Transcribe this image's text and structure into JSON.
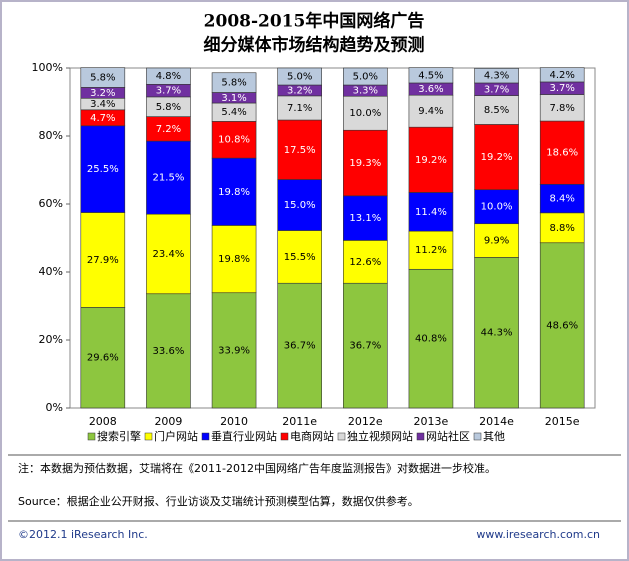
{
  "chart_data": {
    "type": "stacked-bar",
    "title": "2008-2015年中国网络广告",
    "subtitle": "细分媒体市场结构趋势及预测",
    "categories": [
      "2008",
      "2009",
      "2010",
      "2011e",
      "2012e",
      "2013e",
      "2014e",
      "2015e"
    ],
    "ylim": [
      0,
      100
    ],
    "yticks": [
      {
        "value": 0,
        "label": "0%"
      },
      {
        "value": 20,
        "label": "20%"
      },
      {
        "value": 40,
        "label": "40%"
      },
      {
        "value": 60,
        "label": "60%"
      },
      {
        "value": 80,
        "label": "80%"
      },
      {
        "value": 100,
        "label": "100%"
      }
    ],
    "series": [
      {
        "name": "搜索引擎",
        "color": "#8dc63f",
        "values": [
          29.6,
          33.6,
          33.9,
          36.7,
          36.7,
          40.8,
          44.3,
          48.6
        ],
        "value_labels": [
          "29.6%",
          "33.6%",
          "33.9%",
          "36.7%",
          "36.7%",
          "40.8%",
          "44.3%",
          "48.6%"
        ]
      },
      {
        "name": "门户网站",
        "color": "#ffff00",
        "values": [
          27.9,
          23.4,
          19.8,
          15.5,
          12.6,
          11.2,
          9.9,
          8.8
        ],
        "value_labels": [
          "27.9%",
          "23.4%",
          "19.8%",
          "15.5%",
          "12.6%",
          "11.2%",
          "9.9%",
          "8.8%"
        ]
      },
      {
        "name": "垂直行业网站",
        "color": "#0000ff",
        "values": [
          25.5,
          21.5,
          19.8,
          15.0,
          13.1,
          11.4,
          10.0,
          8.4
        ],
        "value_labels": [
          "25.5%",
          "21.5%",
          "19.8%",
          "15.0%",
          "13.1%",
          "11.4%",
          "10.0%",
          "8.4%"
        ]
      },
      {
        "name": "电商网站",
        "color": "#ff0000",
        "values": [
          4.7,
          7.2,
          10.8,
          17.5,
          19.3,
          19.2,
          19.2,
          18.6
        ],
        "value_labels": [
          "4.7%",
          "7.2%",
          "10.8%",
          "17.5%",
          "19.3%",
          "19.2%",
          "19.2%",
          "18.6%"
        ]
      },
      {
        "name": "独立视频网站",
        "color": "#d9d9d9",
        "values": [
          3.4,
          5.8,
          5.4,
          7.1,
          10.0,
          9.4,
          8.5,
          7.8
        ],
        "value_labels": [
          "3.4%",
          "5.8%",
          "5.4%",
          "7.1%",
          "10.0%",
          "9.4%",
          "8.5%",
          "7.8%"
        ]
      },
      {
        "name": "网站社区",
        "color": "#7030a0",
        "values": [
          3.2,
          3.7,
          3.1,
          3.2,
          3.3,
          3.6,
          3.7,
          3.7
        ],
        "value_labels": [
          "3.2%",
          "3.7%",
          "3.1%",
          "3.2%",
          "3.3%",
          "3.6%",
          "3.7%",
          "3.7%"
        ]
      },
      {
        "name": "其他",
        "color": "#b9c9dd",
        "values": [
          5.8,
          4.8,
          5.8,
          5.0,
          5.0,
          4.5,
          4.3,
          4.2
        ],
        "value_labels": [
          "5.8%",
          "4.8%",
          "5.8%",
          "5.0%",
          "5.0%",
          "4.5%",
          "4.3%",
          "4.2%"
        ]
      }
    ]
  },
  "notes": {
    "note": "注：本数据为预估数据，艾瑞将在《2011-2012中国网络广告年度监测报告》对数据进一步校准。",
    "source": "Source：根据企业公开财报、行业访谈及艾瑞统计预测模型估算，数据仅供参考。",
    "copyright": "©2012.1 iResearch Inc.",
    "website": "www.iresearch.com.cn"
  }
}
